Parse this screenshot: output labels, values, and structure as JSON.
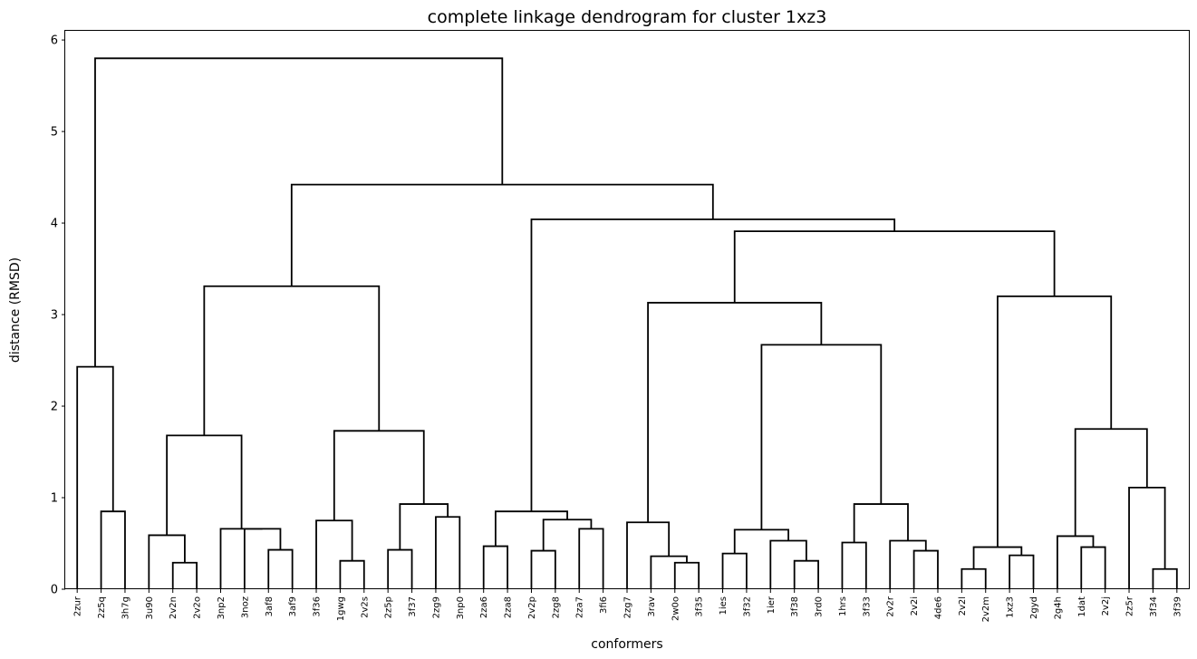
{
  "chart_data": {
    "type": "dendrogram",
    "title": "complete linkage dendrogram for cluster 1xz3",
    "xlabel": "conformers",
    "ylabel": "distance (RMSD)",
    "ylim": [
      0,
      6.1
    ],
    "yticks": [
      0,
      1,
      2,
      3,
      4,
      5,
      6
    ],
    "grid": false,
    "line_color": "#000000",
    "leaves": [
      "2zur",
      "2z5q",
      "3h7g",
      "3u90",
      "2v2n",
      "2v2o",
      "3np2",
      "3noz",
      "3af8",
      "3af9",
      "3f36",
      "1gwg",
      "2v2s",
      "2z5p",
      "3f37",
      "2zg9",
      "3np0",
      "2za6",
      "2za8",
      "2v2p",
      "2zg8",
      "2za7",
      "3fi6",
      "2zg7",
      "3rav",
      "2w0o",
      "3f35",
      "1ies",
      "3f32",
      "1ier",
      "3f38",
      "3rd0",
      "1hrs",
      "3f33",
      "2v2r",
      "2v2i",
      "4de6",
      "2v2l",
      "2v2m",
      "1xz3",
      "2gyd",
      "2g4h",
      "1dat",
      "2v2j",
      "2z5r",
      "3f34",
      "3f39"
    ],
    "merges": [
      {
        "a": "2z5q",
        "b": "3h7g",
        "height": 0.85
      },
      {
        "a": "2zur",
        "b": 0,
        "height": 2.43
      },
      {
        "a": "2v2n",
        "b": "2v2o",
        "height": 0.29
      },
      {
        "a": "3u90",
        "b": 2,
        "height": 0.59
      },
      {
        "a": "3af8",
        "b": "3af9",
        "height": 0.43
      },
      {
        "a": "3noz",
        "b": 4,
        "height": 0.66
      },
      {
        "a": "3np2",
        "b": 5,
        "height": 0.66
      },
      {
        "a": 3,
        "b": 6,
        "height": 1.68
      },
      {
        "a": "1gwg",
        "b": "2v2s",
        "height": 0.31
      },
      {
        "a": "3f36",
        "b": 8,
        "height": 0.75
      },
      {
        "a": "2z5p",
        "b": "3f37",
        "height": 0.43
      },
      {
        "a": "2zg9",
        "b": "3np0",
        "height": 0.79
      },
      {
        "a": 10,
        "b": 11,
        "height": 0.93
      },
      {
        "a": 9,
        "b": 12,
        "height": 1.73
      },
      {
        "a": 7,
        "b": 13,
        "height": 3.31
      },
      {
        "a": "2za6",
        "b": "2za8",
        "height": 0.47
      },
      {
        "a": "2v2p",
        "b": "2zg8",
        "height": 0.42
      },
      {
        "a": "2za7",
        "b": "3fi6",
        "height": 0.66
      },
      {
        "a": 16,
        "b": 17,
        "height": 0.76
      },
      {
        "a": 15,
        "b": 18,
        "height": 0.85
      },
      {
        "a": "2w0o",
        "b": "3f35",
        "height": 0.29
      },
      {
        "a": "3rav",
        "b": 20,
        "height": 0.36
      },
      {
        "a": "2zg7",
        "b": 21,
        "height": 0.73
      },
      {
        "a": "1ies",
        "b": "3f32",
        "height": 0.39
      },
      {
        "a": "3f38",
        "b": "3rd0",
        "height": 0.31
      },
      {
        "a": "1ier",
        "b": 24,
        "height": 0.53
      },
      {
        "a": 23,
        "b": 25,
        "height": 0.65
      },
      {
        "a": "1hrs",
        "b": "3f33",
        "height": 0.51
      },
      {
        "a": "2v2i",
        "b": "4de6",
        "height": 0.42
      },
      {
        "a": "2v2r",
        "b": 28,
        "height": 0.53
      },
      {
        "a": 27,
        "b": 29,
        "height": 0.93
      },
      {
        "a": 26,
        "b": 30,
        "height": 2.67
      },
      {
        "a": 22,
        "b": 31,
        "height": 3.13
      },
      {
        "a": "2v2l",
        "b": "2v2m",
        "height": 0.22
      },
      {
        "a": "1xz3",
        "b": "2gyd",
        "height": 0.37
      },
      {
        "a": 33,
        "b": 34,
        "height": 0.46
      },
      {
        "a": "1dat",
        "b": "2v2j",
        "height": 0.46
      },
      {
        "a": "2g4h",
        "b": 36,
        "height": 0.58
      },
      {
        "a": "3f34",
        "b": "3f39",
        "height": 0.22
      },
      {
        "a": "2z5r",
        "b": 38,
        "height": 1.11
      },
      {
        "a": 37,
        "b": 39,
        "height": 1.75
      },
      {
        "a": 35,
        "b": 40,
        "height": 3.2
      },
      {
        "a": 32,
        "b": 41,
        "height": 3.91
      },
      {
        "a": 19,
        "b": 42,
        "height": 4.04
      },
      {
        "a": 14,
        "b": 43,
        "height": 4.42
      },
      {
        "a": 1,
        "b": 44,
        "height": 5.8
      }
    ]
  }
}
